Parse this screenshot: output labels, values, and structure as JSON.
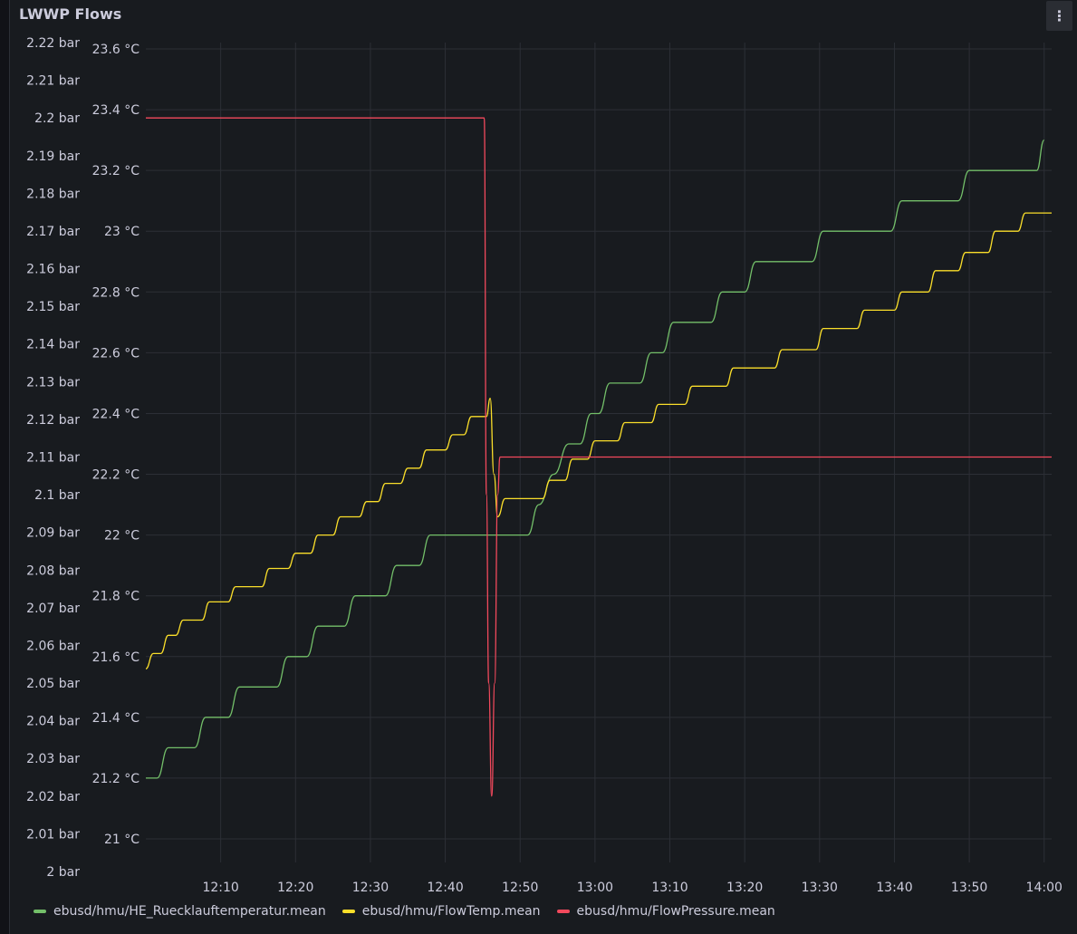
{
  "panel": {
    "title": "LWWP Flows",
    "menu_icon": "kebab-menu-icon",
    "menu_glyph": "⋮"
  },
  "colors": {
    "background": "#181b1f",
    "grid": "#2c2f36",
    "text": "#ccccdc"
  },
  "chart_data": {
    "type": "line",
    "grid": true,
    "legend_placement": "bottom-left",
    "x_axis": {
      "range": [
        "12:00",
        "14:01"
      ],
      "ticks": [
        "12:10",
        "12:20",
        "12:30",
        "12:40",
        "12:50",
        "13:00",
        "13:10",
        "13:20",
        "13:30",
        "13:40",
        "13:50",
        "14:00"
      ]
    },
    "y_axis_left": {
      "unit": "bar",
      "range": [
        2.0,
        2.22
      ],
      "ticks": [
        "2 bar",
        "2.01 bar",
        "2.02 bar",
        "2.03 bar",
        "2.04 bar",
        "2.05 bar",
        "2.06 bar",
        "2.07 bar",
        "2.08 bar",
        "2.09 bar",
        "2.1 bar",
        "2.11 bar",
        "2.12 bar",
        "2.13 bar",
        "2.14 bar",
        "2.15 bar",
        "2.16 bar",
        "2.17 bar",
        "2.18 bar",
        "2.19 bar",
        "2.2 bar",
        "2.21 bar",
        "2.22 bar"
      ]
    },
    "y_axis_right": {
      "unit": "°C",
      "range": [
        21.0,
        23.6
      ],
      "ticks": [
        "21 °C",
        "21.2 °C",
        "21.4 °C",
        "21.6 °C",
        "21.8 °C",
        "22 °C",
        "22.2 °C",
        "22.4 °C",
        "22.6 °C",
        "22.8 °C",
        "23 °C",
        "23.2 °C",
        "23.4 °C",
        "23.6 °C"
      ]
    },
    "series": [
      {
        "name": "ebusd/hmu/HE_Ruecklauftemperatur.mean",
        "color": "#73bf69",
        "axis": "temp",
        "points": [
          [
            "12:00",
            21.2
          ],
          [
            "12:01.5",
            21.2
          ],
          [
            "12:03",
            21.3
          ],
          [
            "12:06.5",
            21.3
          ],
          [
            "12:08",
            21.4
          ],
          [
            "12:11",
            21.4
          ],
          [
            "12:12.5",
            21.5
          ],
          [
            "12:17.5",
            21.5
          ],
          [
            "12:19",
            21.6
          ],
          [
            "12:21.5",
            21.6
          ],
          [
            "12:23",
            21.7
          ],
          [
            "12:26.5",
            21.7
          ],
          [
            "12:28",
            21.8
          ],
          [
            "12:32",
            21.8
          ],
          [
            "12:33.5",
            21.9
          ],
          [
            "12:36.5",
            21.9
          ],
          [
            "12:38",
            22.0
          ],
          [
            "12:51",
            22.0
          ],
          [
            "12:52.5",
            22.1
          ],
          [
            "12:54.5",
            22.2
          ],
          [
            "12:56.5",
            22.3
          ],
          [
            "12:58",
            22.3
          ],
          [
            "12:59.5",
            22.4
          ],
          [
            "13:00.5",
            22.4
          ],
          [
            "13:02",
            22.5
          ],
          [
            "13:06",
            22.5
          ],
          [
            "13:07.5",
            22.6
          ],
          [
            "13:09",
            22.6
          ],
          [
            "13:10.5",
            22.7
          ],
          [
            "13:15.5",
            22.7
          ],
          [
            "13:17",
            22.8
          ],
          [
            "13:20",
            22.8
          ],
          [
            "13:21.5",
            22.9
          ],
          [
            "13:29",
            22.9
          ],
          [
            "13:30.5",
            23.0
          ],
          [
            "13:39.5",
            23.0
          ],
          [
            "13:41",
            23.1
          ],
          [
            "13:48.5",
            23.1
          ],
          [
            "13:50",
            23.2
          ],
          [
            "13:59",
            23.2
          ],
          [
            "14:00",
            23.3
          ]
        ]
      },
      {
        "name": "ebusd/hmu/FlowTemp.mean",
        "color": "#fade2a",
        "axis": "temp",
        "points": [
          [
            "12:00",
            21.56
          ],
          [
            "12:01",
            21.61
          ],
          [
            "12:02",
            21.61
          ],
          [
            "12:03",
            21.67
          ],
          [
            "12:04",
            21.67
          ],
          [
            "12:05",
            21.72
          ],
          [
            "12:07.5",
            21.72
          ],
          [
            "12:08.5",
            21.78
          ],
          [
            "12:11",
            21.78
          ],
          [
            "12:12",
            21.83
          ],
          [
            "12:15.5",
            21.83
          ],
          [
            "12:16.5",
            21.89
          ],
          [
            "12:19",
            21.89
          ],
          [
            "12:20",
            21.94
          ],
          [
            "12:22",
            21.94
          ],
          [
            "12:23",
            22.0
          ],
          [
            "12:25",
            22.0
          ],
          [
            "12:26",
            22.06
          ],
          [
            "12:28.5",
            22.06
          ],
          [
            "12:29.5",
            22.11
          ],
          [
            "12:31",
            22.11
          ],
          [
            "12:32",
            22.17
          ],
          [
            "12:34",
            22.17
          ],
          [
            "12:35",
            22.22
          ],
          [
            "12:36.5",
            22.22
          ],
          [
            "12:37.5",
            22.28
          ],
          [
            "12:40",
            22.28
          ],
          [
            "12:41",
            22.33
          ],
          [
            "12:42.5",
            22.33
          ],
          [
            "12:43.5",
            22.39
          ],
          [
            "12:45.5",
            22.39
          ],
          [
            "12:46",
            22.45
          ],
          [
            "12:46.5",
            22.2
          ],
          [
            "12:47",
            22.06
          ],
          [
            "12:48",
            22.12
          ],
          [
            "12:53",
            22.12
          ],
          [
            "12:54",
            22.18
          ],
          [
            "12:56",
            22.18
          ],
          [
            "12:57",
            22.25
          ],
          [
            "12:59",
            22.25
          ],
          [
            "13:00",
            22.31
          ],
          [
            "13:03",
            22.31
          ],
          [
            "13:04",
            22.37
          ],
          [
            "13:07.5",
            22.37
          ],
          [
            "13:08.5",
            22.43
          ],
          [
            "13:12",
            22.43
          ],
          [
            "13:13",
            22.49
          ],
          [
            "13:17.5",
            22.49
          ],
          [
            "13:18.5",
            22.55
          ],
          [
            "13:24",
            22.55
          ],
          [
            "13:25",
            22.61
          ],
          [
            "13:29.5",
            22.61
          ],
          [
            "13:30.5",
            22.68
          ],
          [
            "13:35",
            22.68
          ],
          [
            "13:36",
            22.74
          ],
          [
            "13:40",
            22.74
          ],
          [
            "13:41",
            22.8
          ],
          [
            "13:44.5",
            22.8
          ],
          [
            "13:45.5",
            22.87
          ],
          [
            "13:48.5",
            22.87
          ],
          [
            "13:49.5",
            22.93
          ],
          [
            "13:52.5",
            22.93
          ],
          [
            "13:53.5",
            23.0
          ],
          [
            "13:56.5",
            23.0
          ],
          [
            "13:57.5",
            23.06
          ],
          [
            "14:01",
            23.06
          ]
        ]
      },
      {
        "name": "ebusd/hmu/FlowPressure.mean",
        "color": "#f2495c",
        "axis": "pressure",
        "points": [
          [
            "12:00",
            2.2
          ],
          [
            "12:45.2",
            2.2
          ],
          [
            "12:45.5",
            2.1
          ],
          [
            "12:45.8",
            2.05
          ],
          [
            "12:46.2",
            2.02
          ],
          [
            "12:46.6",
            2.05
          ],
          [
            "12:47",
            2.1
          ],
          [
            "12:47.3",
            2.11
          ],
          [
            "14:01",
            2.11
          ]
        ]
      }
    ]
  }
}
